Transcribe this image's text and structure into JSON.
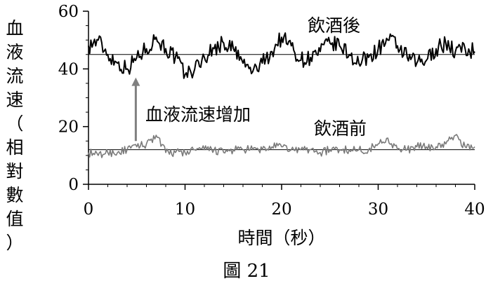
{
  "chart_data": {
    "type": "line",
    "ylabel": "血液流速（相對數值）",
    "xlabel": "時間（秒）",
    "caption": "圖 21",
    "xlim": [
      0,
      40
    ],
    "ylim": [
      0,
      60
    ],
    "x_ticks": [
      "0",
      "10",
      "20",
      "30",
      "40"
    ],
    "y_ticks": [
      "0",
      "20",
      "40",
      "60"
    ],
    "series": [
      {
        "name": "飲酒後",
        "color": "#000000",
        "mean": 45,
        "x": [
          0,
          1,
          2,
          3,
          4,
          5,
          6,
          7,
          8,
          9,
          10,
          11,
          12,
          13,
          14,
          15,
          16,
          17,
          18,
          19,
          20,
          21,
          22,
          23,
          24,
          25,
          26,
          27,
          28,
          29,
          30,
          31,
          32,
          33,
          34,
          35,
          36,
          37,
          38,
          39,
          40
        ],
        "values": [
          48,
          50,
          45,
          42,
          40,
          44,
          47,
          51,
          47,
          44,
          38,
          40,
          44,
          47,
          49,
          47,
          42,
          39,
          42,
          46,
          51,
          48,
          43,
          44,
          46,
          49,
          48,
          45,
          42,
          44,
          47,
          50,
          48,
          44,
          42,
          43,
          47,
          49,
          46,
          47,
          46
        ]
      },
      {
        "name": "飲酒前",
        "color": "#7a7a7a",
        "mean": 12,
        "x": [
          0,
          1,
          2,
          3,
          4,
          5,
          6,
          7,
          8,
          9,
          10,
          11,
          12,
          13,
          14,
          15,
          16,
          17,
          18,
          19,
          20,
          21,
          22,
          23,
          24,
          25,
          26,
          27,
          28,
          29,
          30,
          31,
          32,
          33,
          34,
          35,
          36,
          37,
          38,
          39,
          40
        ],
        "values": [
          11,
          10,
          11,
          11,
          12,
          13,
          14,
          17,
          11,
          11,
          11,
          12,
          12,
          12,
          11,
          12,
          12,
          12,
          12,
          13,
          13,
          12,
          12,
          12,
          11,
          12,
          12,
          12,
          12,
          12,
          14,
          16,
          12,
          12,
          13,
          13,
          13,
          14,
          17,
          13,
          13
        ]
      }
    ],
    "annotations": [
      {
        "text": "血液流速增加",
        "arrow_from": [
          4.9,
          15
        ],
        "arrow_to": [
          4.9,
          37
        ]
      }
    ]
  }
}
